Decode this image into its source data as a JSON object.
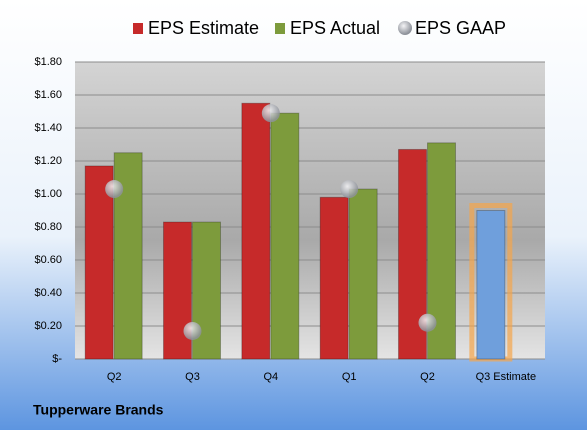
{
  "chart_data": {
    "type": "bar",
    "footer": "Tupperware Brands",
    "categories": [
      "Q2",
      "Q3",
      "Q4",
      "Q1",
      "Q2",
      "Q3 Estimate"
    ],
    "series": [
      {
        "name": "EPS Estimate",
        "color": "#c62a2a",
        "values": [
          1.17,
          0.83,
          1.55,
          0.98,
          1.27,
          0.9
        ],
        "colors": [
          "#c62a2a",
          "#c62a2a",
          "#c62a2a",
          "#c62a2a",
          "#c62a2a",
          "#6f9fdc"
        ]
      },
      {
        "name": "EPS Actual",
        "color": "#7d9b3c",
        "values": [
          1.25,
          0.83,
          1.49,
          1.03,
          1.31,
          null
        ]
      },
      {
        "name": "EPS GAAP",
        "color": "#b0b4bc",
        "type": "scatter",
        "values": [
          1.03,
          0.17,
          1.49,
          1.03,
          0.22,
          null
        ]
      }
    ],
    "ylim": [
      0,
      1.8
    ],
    "yticks": [
      {
        "value": 0,
        "label": "$-"
      },
      {
        "value": 0.2,
        "label": "$0.20"
      },
      {
        "value": 0.4,
        "label": "$0.40"
      },
      {
        "value": 0.6,
        "label": "$0.60"
      },
      {
        "value": 0.8,
        "label": "$0.80"
      },
      {
        "value": 1.0,
        "label": "$1.00"
      },
      {
        "value": 1.2,
        "label": "$1.20"
      },
      {
        "value": 1.4,
        "label": "$1.40"
      },
      {
        "value": 1.6,
        "label": "$1.60"
      },
      {
        "value": 1.8,
        "label": "$1.80"
      }
    ],
    "grid": true,
    "legend": "top"
  }
}
